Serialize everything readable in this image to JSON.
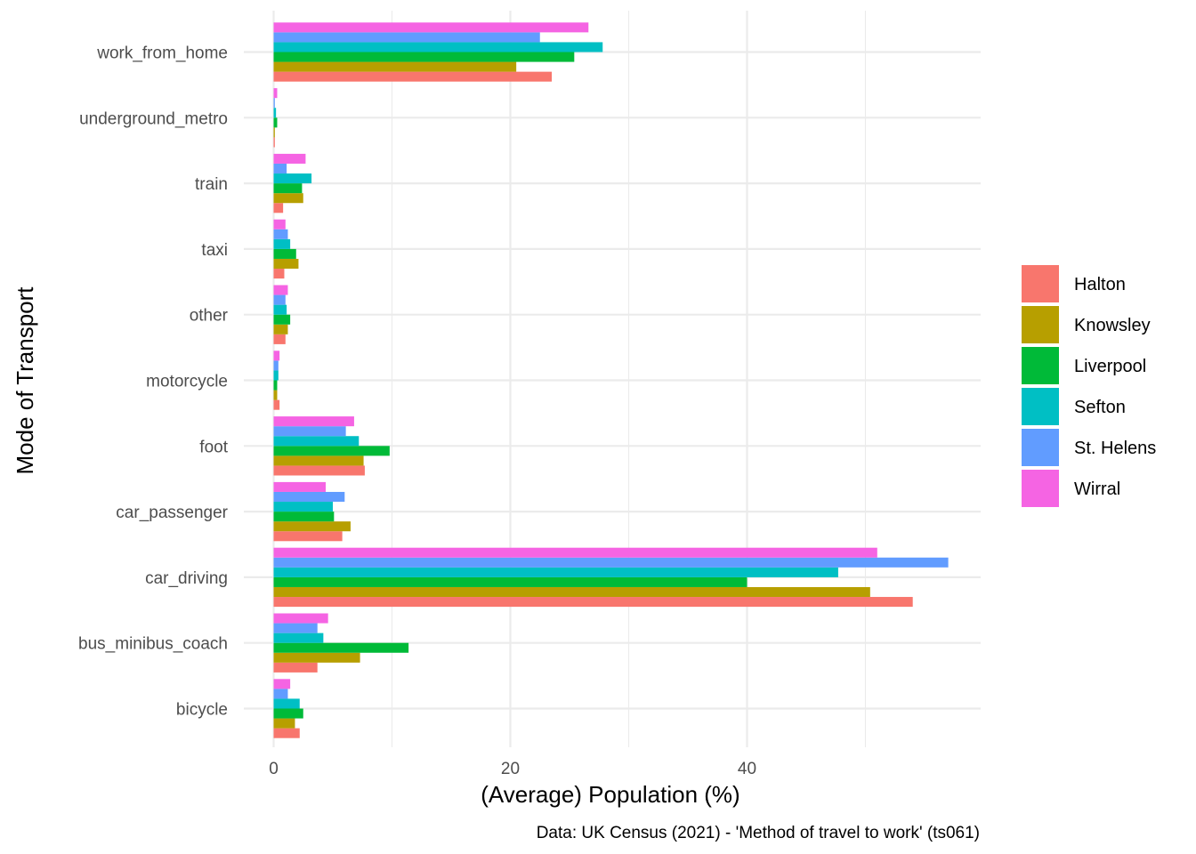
{
  "chart_data": {
    "type": "bar",
    "orientation": "horizontal",
    "position": "dodge",
    "title": "",
    "xlabel": "(Average) Population (%)",
    "ylabel": "Mode of Transport",
    "caption": "Data: UK Census (2021) - 'Method of travel to work' (ts061)",
    "xlim": [
      0,
      59.5
    ],
    "x_ticks": [
      0,
      20,
      40
    ],
    "x_minor_ticks": [
      10,
      30,
      50
    ],
    "grid": true,
    "legend": {
      "position": "right",
      "title": ""
    },
    "categories": [
      "bicycle",
      "bus_minibus_coach",
      "car_driving",
      "car_passenger",
      "foot",
      "motorcycle",
      "other",
      "taxi",
      "train",
      "underground_metro",
      "work_from_home"
    ],
    "series": [
      {
        "name": "Halton",
        "color": "#F8766D",
        "values": [
          2.2,
          3.7,
          54.0,
          5.8,
          7.7,
          0.5,
          1.0,
          0.9,
          0.8,
          0.1,
          23.5
        ]
      },
      {
        "name": "Knowsley",
        "color": "#B79F00",
        "values": [
          1.8,
          7.3,
          50.4,
          6.5,
          7.6,
          0.3,
          1.2,
          2.1,
          2.5,
          0.1,
          20.5
        ]
      },
      {
        "name": "Liverpool",
        "color": "#00BA38",
        "values": [
          2.5,
          11.4,
          40.0,
          5.1,
          9.8,
          0.3,
          1.4,
          1.9,
          2.4,
          0.3,
          25.4
        ]
      },
      {
        "name": "Sefton",
        "color": "#00BFC4",
        "values": [
          2.2,
          4.2,
          47.7,
          5.0,
          7.2,
          0.4,
          1.1,
          1.4,
          3.2,
          0.2,
          27.8
        ]
      },
      {
        "name": "St. Helens",
        "color": "#619CFF",
        "values": [
          1.2,
          3.7,
          57.0,
          6.0,
          6.1,
          0.4,
          1.0,
          1.2,
          1.1,
          0.1,
          22.5
        ]
      },
      {
        "name": "Wirral",
        "color": "#F564E3",
        "values": [
          1.4,
          4.6,
          51.0,
          4.4,
          6.8,
          0.5,
          1.2,
          1.0,
          2.7,
          0.3,
          26.6
        ]
      }
    ]
  }
}
